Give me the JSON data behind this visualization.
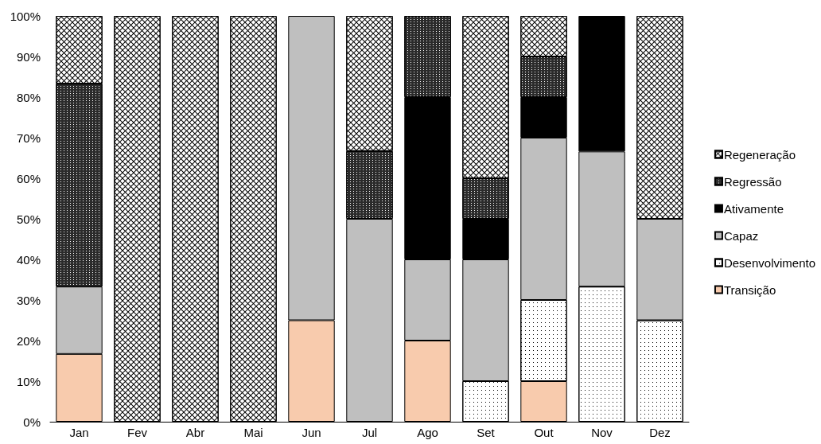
{
  "chart_data": {
    "type": "bar",
    "stacked": true,
    "categories": [
      "Jan",
      "Fev",
      "Abr",
      "Mai",
      "Jun",
      "Jul",
      "Ago",
      "Set",
      "Out",
      "Nov",
      "Dez"
    ],
    "series": [
      {
        "name": "Transição",
        "color": "#f8cbad",
        "values": [
          16.7,
          null,
          null,
          null,
          25,
          null,
          20,
          null,
          10,
          null,
          null
        ]
      },
      {
        "name": "Desenvolvimento",
        "color": "#ffffff",
        "values": [
          null,
          null,
          null,
          null,
          null,
          null,
          null,
          10,
          20,
          33.3,
          25
        ]
      },
      {
        "name": "Capaz",
        "color": "#bfbfbf",
        "values": [
          16.6,
          null,
          null,
          null,
          75,
          50,
          20,
          30,
          40,
          33.3,
          25
        ]
      },
      {
        "name": "Ativamente",
        "color": "#000000",
        "values": [
          null,
          null,
          null,
          null,
          null,
          null,
          40,
          10,
          10,
          33.4,
          null
        ]
      },
      {
        "name": "Regressão",
        "color": "#2b2b2b",
        "values": [
          50,
          null,
          null,
          null,
          null,
          16.7,
          20,
          10,
          10,
          null,
          null
        ]
      },
      {
        "name": "Regeneração",
        "color": "#ffffff",
        "values": [
          16.7,
          100,
          100,
          100,
          null,
          33.3,
          null,
          40,
          10,
          null,
          50
        ]
      }
    ],
    "ylim": [
      0,
      100
    ],
    "yticks": [
      {
        "value": 0,
        "label": "0%"
      },
      {
        "value": 10,
        "label": "10%"
      },
      {
        "value": 20,
        "label": "20%"
      },
      {
        "value": 30,
        "label": "30%"
      },
      {
        "value": 40,
        "label": "40%"
      },
      {
        "value": 50,
        "label": "50%"
      },
      {
        "value": 60,
        "label": "60%"
      },
      {
        "value": 70,
        "label": "70%"
      },
      {
        "value": 80,
        "label": "80%"
      },
      {
        "value": 90,
        "label": "90%"
      },
      {
        "value": 100,
        "label": "100%"
      }
    ],
    "grid": false,
    "legend": "right"
  }
}
